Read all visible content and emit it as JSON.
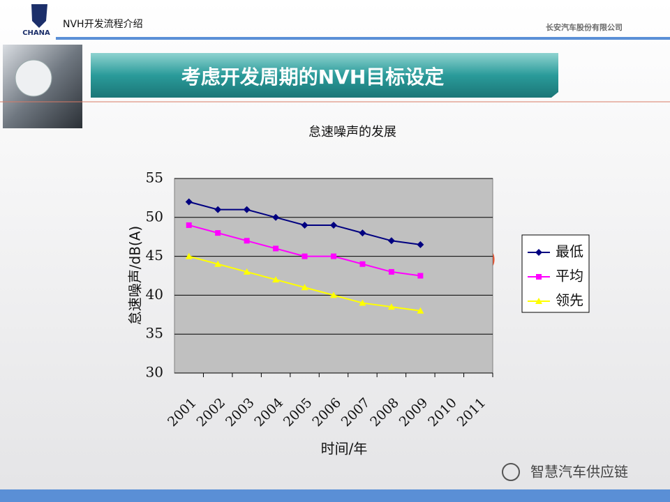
{
  "header": {
    "logo": "CHANA",
    "deck_title": "NVH开发流程介绍",
    "company": "长安汽车股份有限公司"
  },
  "slide_title": "考虑开发周期的NVH目标设定",
  "watermark": "智慧汽车供应链",
  "chart_data": {
    "type": "line",
    "title": "怠速噪声的发展",
    "x_label": "时间/年",
    "y_label": "怠速噪声/dB(A)",
    "annotation": "?",
    "categories": [
      "2001",
      "2002",
      "2003",
      "2004",
      "2005",
      "2006",
      "2007",
      "2008",
      "2009",
      "2010",
      "2011"
    ],
    "series": [
      {
        "name": "最低",
        "color": "#000080",
        "marker": "diamond",
        "values": [
          52,
          51,
          51,
          50,
          49,
          49,
          48,
          47,
          46.5,
          null,
          null
        ]
      },
      {
        "name": "平均",
        "color": "#ff00ff",
        "marker": "square",
        "values": [
          49,
          48,
          47,
          46,
          45,
          45,
          44,
          43,
          42.5,
          null,
          null
        ]
      },
      {
        "name": "领先",
        "color": "#ffff00",
        "marker": "triangle",
        "values": [
          45,
          44,
          43,
          42,
          41,
          40,
          39,
          38.5,
          38,
          null,
          null
        ]
      }
    ],
    "ylim": [
      30,
      55
    ],
    "yticks": [
      30,
      35,
      40,
      45,
      50,
      55
    ],
    "grid": true,
    "legend": "right"
  }
}
